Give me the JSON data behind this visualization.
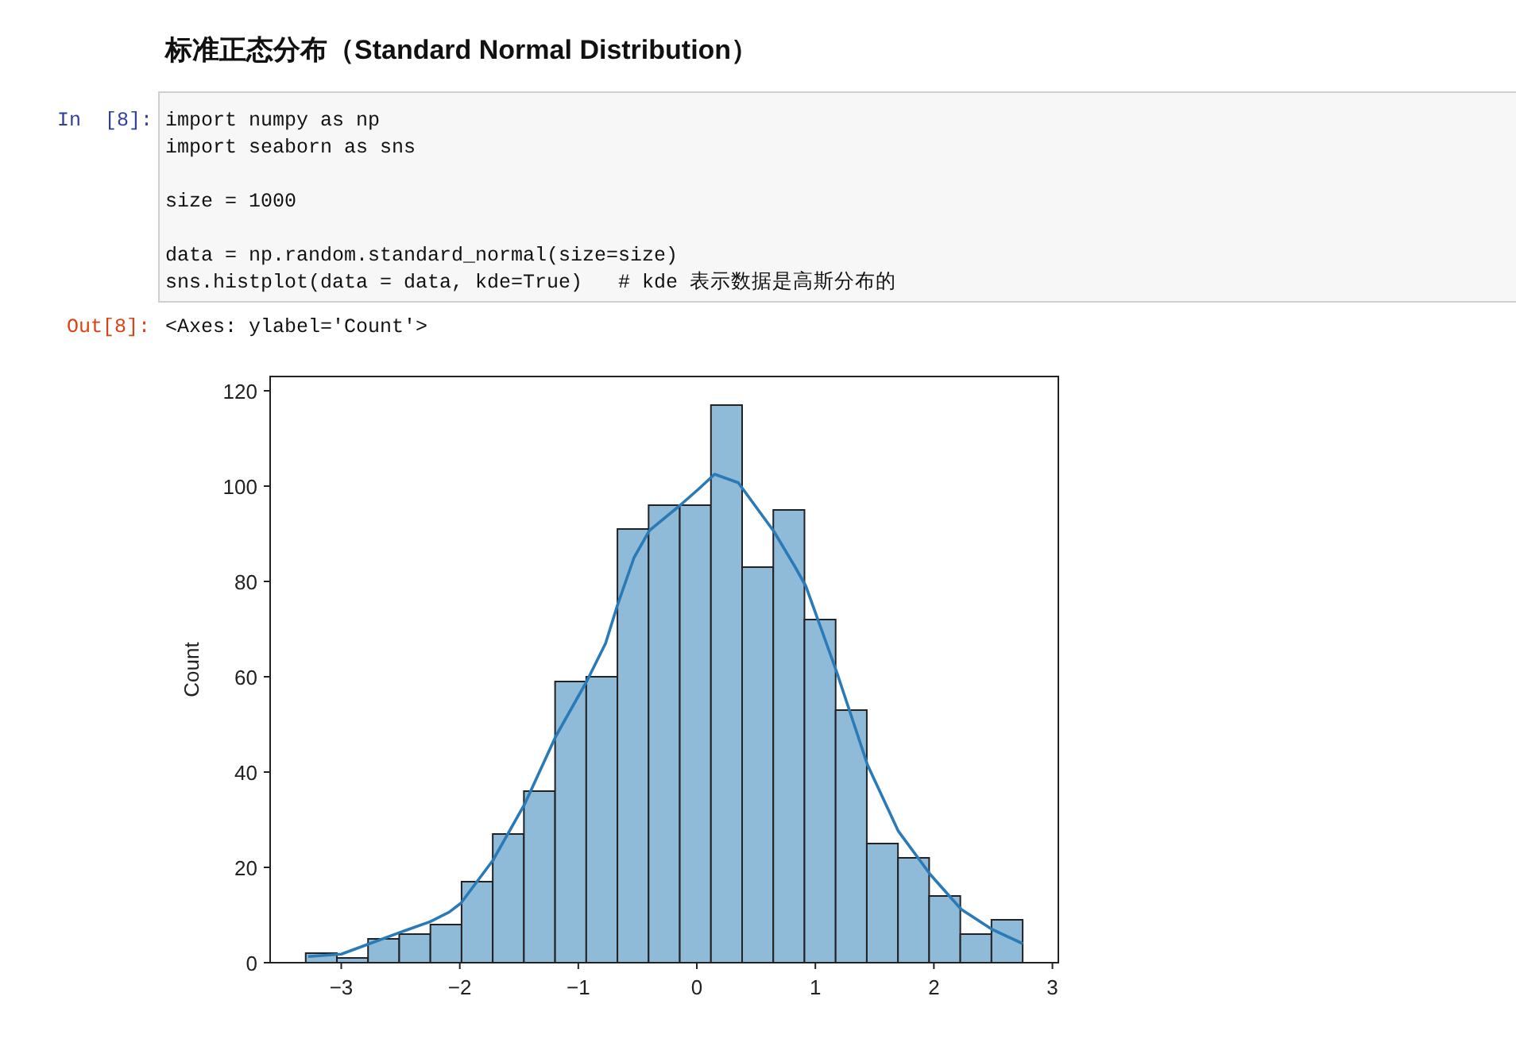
{
  "chart_data": {
    "type": "histogram",
    "title": "标准正态分布（Standard Normal Distribution）",
    "ylabel": "Count",
    "xlim": [
      -3.6,
      3.05
    ],
    "xticks": [
      {
        "value": -3,
        "label": "−3"
      },
      {
        "value": -2,
        "label": "−2"
      },
      {
        "value": -1,
        "label": "−1"
      },
      0,
      1,
      2,
      3
    ],
    "ylim": [
      0,
      123
    ],
    "yticks": [
      0,
      20,
      40,
      60,
      80,
      100,
      120
    ],
    "grid": false,
    "series": [
      {
        "type": "histogram",
        "color": "#8fbbd9",
        "bins": [
          -3.3,
          -3.037,
          -2.774,
          -2.511,
          -2.248,
          -1.985,
          -1.722,
          -1.459,
          -1.196,
          -0.933,
          -0.67,
          -0.407,
          -0.144,
          0.119,
          0.382,
          0.645,
          0.908,
          1.171,
          1.434,
          1.697,
          1.96,
          2.223,
          2.486,
          2.749
        ],
        "values": [
          2,
          1,
          5,
          6,
          8,
          17,
          27,
          36,
          59,
          60,
          91,
          96,
          96,
          117,
          83,
          95,
          72,
          53,
          25,
          22,
          14,
          6,
          9
        ]
      },
      {
        "type": "line",
        "color": "#2a7ab8",
        "x": [
          -3.28,
          -3.0,
          -2.76,
          -2.5,
          -2.25,
          -2.09,
          -1.99,
          -1.72,
          -1.45,
          -1.19,
          -0.93,
          -0.77,
          -0.67,
          -0.53,
          -0.4,
          -0.14,
          0.02,
          0.15,
          0.35,
          0.65,
          0.83,
          0.92,
          1.18,
          1.44,
          1.7,
          1.97,
          2.23,
          2.49,
          2.75
        ],
        "values": [
          1.3,
          1.8,
          4,
          6.4,
          8.6,
          10.6,
          12.5,
          21.5,
          33.4,
          47.5,
          59,
          67,
          75,
          85,
          90.7,
          96,
          99.5,
          102.5,
          100.7,
          90.5,
          83,
          79,
          61,
          41.5,
          27.6,
          18.5,
          11.2,
          7,
          4
        ]
      }
    ],
    "annotations": [
      "In  [8]:",
      "import numpy as np",
      "import seaborn as sns",
      "size = 1000",
      "data = np.random.standard_normal(size=size)",
      "sns.histplot(data = data, kde=True)   # kde 表示数据是高斯分布的",
      "Out[8]:",
      "<Axes: ylabel='Count'>"
    ]
  }
}
